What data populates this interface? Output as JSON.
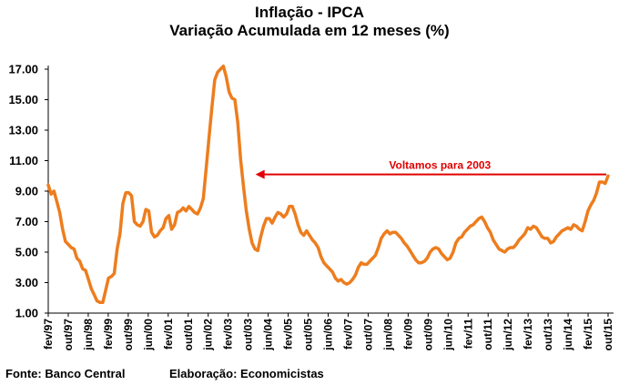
{
  "chart_data": {
    "type": "line",
    "title": "Inflação - IPCA",
    "subtitle": "Variação Acumulada em 12 meses (%)",
    "xlabel": "",
    "ylabel": "",
    "ylim": [
      1.0,
      17.0
    ],
    "yticks": [
      "17.00",
      "15.00",
      "13.00",
      "11.00",
      "9.00",
      "7.00",
      "5.00",
      "3.00",
      "1.00"
    ],
    "xticks": [
      "fev/97",
      "out/97",
      "jun/98",
      "fev/99",
      "out/99",
      "jun/00",
      "fev/01",
      "out/01",
      "jun/02",
      "fev/03",
      "out/03",
      "jun/04",
      "fev/05",
      "out/05",
      "jun/06",
      "fev/07",
      "out/07",
      "jun/08",
      "fev/09",
      "out/09",
      "jun/10",
      "fev/11",
      "out/11",
      "jun/12",
      "fev/13",
      "out/13",
      "jun/14",
      "fev/15",
      "out/15"
    ],
    "grid": false,
    "legend": "none",
    "line_color": "#ED7D1E",
    "annotation": {
      "text": "Voltamos para 2003",
      "color": "#E00000",
      "from": [
        "out/15",
        10.1
      ],
      "to": [
        "out/03",
        10.1
      ]
    },
    "series": [
      {
        "values": [
          9.4,
          8.8,
          9.0,
          8.3,
          7.6,
          6.5,
          5.7,
          5.5,
          5.3,
          5.2,
          4.6,
          4.4,
          3.9,
          3.8,
          3.2,
          2.6,
          2.2,
          1.8,
          1.7,
          1.7,
          2.5,
          3.3,
          3.4,
          3.6,
          5.2,
          6.2,
          8.2,
          8.9,
          8.9,
          8.7,
          7.0,
          6.8,
          6.7,
          7.0,
          7.8,
          7.7,
          6.3,
          6.0,
          6.1,
          6.4,
          6.6,
          7.2,
          7.4,
          6.5,
          6.8,
          7.6,
          7.7,
          7.9,
          7.7,
          8.0,
          7.8,
          7.6,
          7.5,
          7.9,
          8.5,
          10.5,
          12.5,
          14.5,
          16.3,
          16.8,
          17.0,
          17.2,
          16.5,
          15.5,
          15.1,
          15.0,
          13.5,
          11.1,
          9.3,
          7.7,
          6.5,
          5.6,
          5.2,
          5.1,
          6.0,
          6.7,
          7.2,
          7.2,
          6.9,
          7.3,
          7.6,
          7.5,
          7.3,
          7.5,
          8.0,
          8.0,
          7.5,
          6.8,
          6.3,
          6.1,
          6.4,
          6.1,
          5.8,
          5.6,
          5.3,
          4.7,
          4.3,
          4.1,
          3.9,
          3.7,
          3.3,
          3.1,
          3.2,
          3.0,
          2.9,
          3.0,
          3.2,
          3.5,
          4.0,
          4.3,
          4.2,
          4.2,
          4.4,
          4.6,
          4.8,
          5.3,
          5.9,
          6.2,
          6.4,
          6.2,
          6.3,
          6.3,
          6.1,
          5.9,
          5.6,
          5.4,
          5.1,
          4.8,
          4.5,
          4.3,
          4.3,
          4.4,
          4.6,
          5.0,
          5.2,
          5.3,
          5.2,
          4.9,
          4.7,
          4.5,
          4.6,
          5.0,
          5.6,
          5.9,
          6.0,
          6.3,
          6.5,
          6.7,
          6.8,
          7.0,
          7.2,
          7.3,
          7.0,
          6.6,
          6.3,
          5.8,
          5.5,
          5.2,
          5.1,
          5.0,
          5.2,
          5.3,
          5.3,
          5.5,
          5.8,
          6.0,
          6.2,
          6.6,
          6.5,
          6.7,
          6.6,
          6.3,
          6.0,
          5.9,
          5.9,
          5.6,
          5.7,
          6.0,
          6.2,
          6.4,
          6.5,
          6.6,
          6.5,
          6.8,
          6.7,
          6.5,
          6.4,
          7.0,
          7.7,
          8.1,
          8.4,
          8.9,
          9.6,
          9.6,
          9.5,
          10.0
        ]
      }
    ]
  },
  "footer": {
    "source": "Fonte: Banco Central",
    "credit": "Elaboração: Economicistas"
  }
}
